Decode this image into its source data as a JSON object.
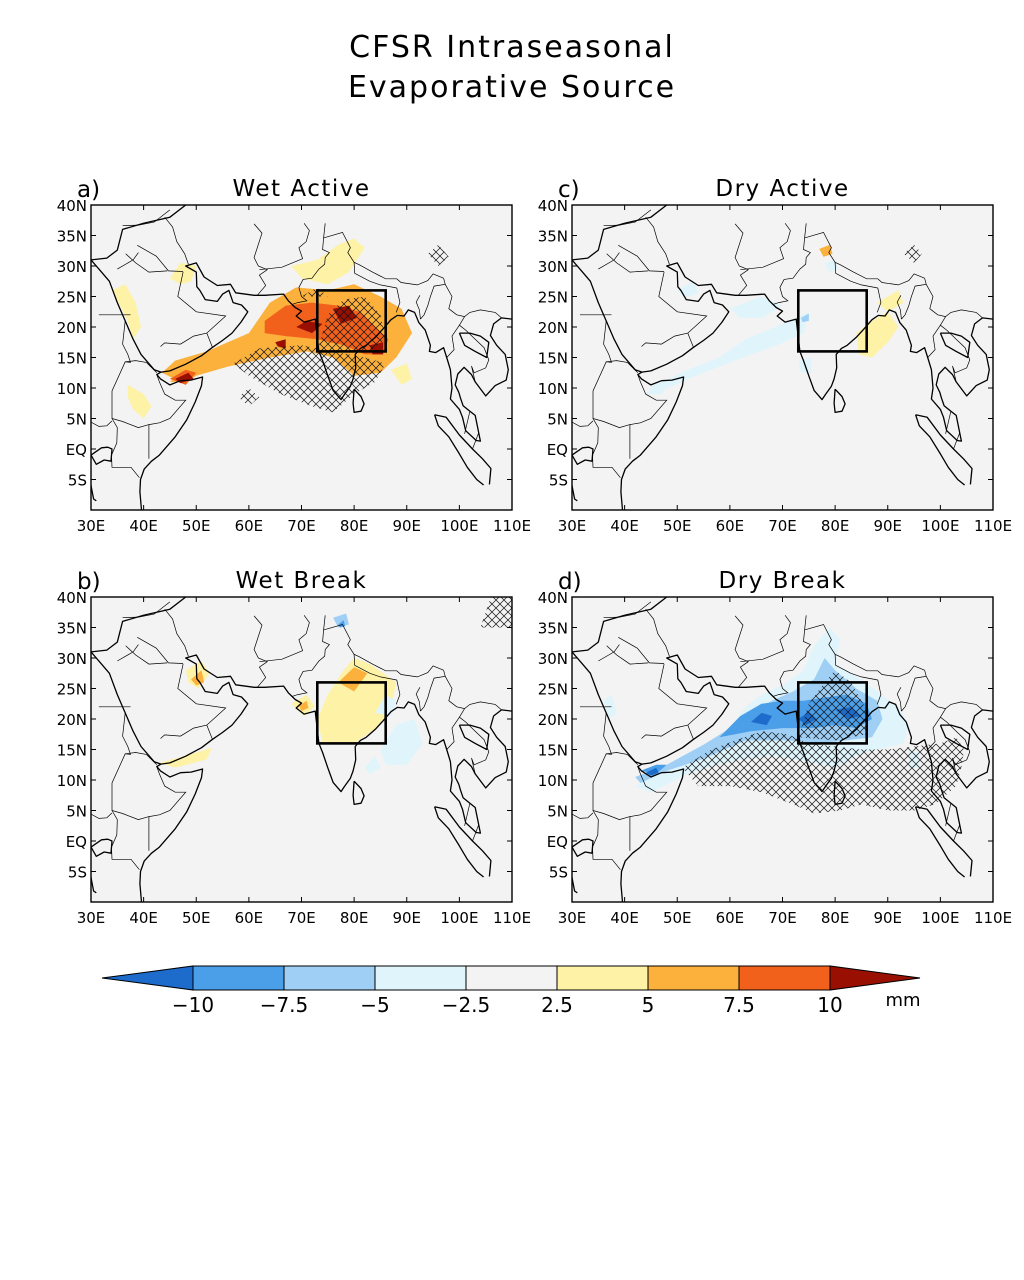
{
  "title": {
    "line1": "CFSR Intraseasonal",
    "line2": "Evaporative Source"
  },
  "panels": [
    {
      "id": "a",
      "letter": "a)",
      "title": "Wet Active"
    },
    {
      "id": "c",
      "letter": "c)",
      "title": "Dry Active"
    },
    {
      "id": "b",
      "letter": "b)",
      "title": "Wet Break"
    },
    {
      "id": "d",
      "letter": "d)",
      "title": "Dry Break"
    }
  ],
  "axes": {
    "lon_labels": [
      "30E",
      "40E",
      "50E",
      "60E",
      "70E",
      "80E",
      "90E",
      "100E",
      "110E"
    ],
    "lat_labels": [
      "40N",
      "35N",
      "30N",
      "25N",
      "20N",
      "15N",
      "10N",
      "5N",
      "EQ",
      "5S"
    ],
    "lon_range": [
      30,
      110
    ],
    "lat_range": [
      -10,
      40
    ]
  },
  "box_region": {
    "lon": [
      73,
      86
    ],
    "lat": [
      16,
      26
    ]
  },
  "colorbar": {
    "ticks": [
      "−10",
      "−7.5",
      "−5",
      "−2.5",
      "2.5",
      "5",
      "7.5",
      "10"
    ],
    "unit": "mm",
    "colors": [
      "#1d6ccc",
      "#4b9ee8",
      "#9fcff5",
      "#dff4fb",
      "#f3f3f3",
      "#fdf2a6",
      "#fbb13c",
      "#f2611b",
      "#990f02"
    ]
  },
  "colors": {
    "map_bg": "#f3f3f3",
    "land_outline": "#000000"
  }
}
